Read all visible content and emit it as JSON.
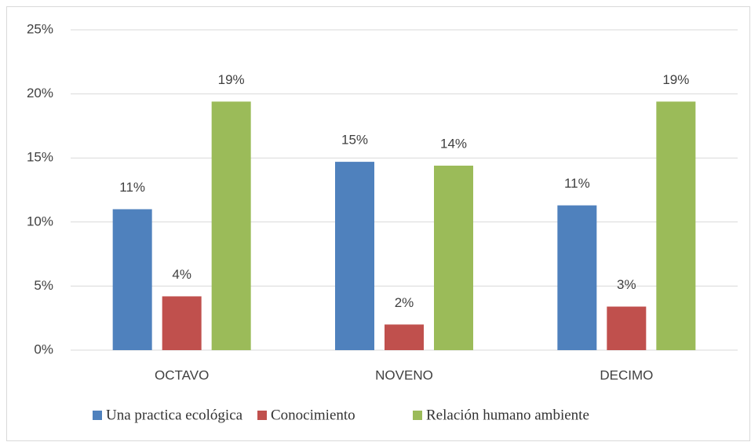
{
  "chart_data": {
    "type": "bar",
    "categories": [
      "OCTAVO",
      "NOVENO",
      "DECIMO"
    ],
    "series": [
      {
        "name": "Una practica ecológica",
        "color": "#4f81bd",
        "values": [
          11.0,
          14.7,
          11.3
        ],
        "value_labels": [
          "11%",
          "15%",
          "11%"
        ]
      },
      {
        "name": "Conocimiento",
        "color": "#c0504d",
        "values": [
          4.2,
          2.0,
          3.4
        ],
        "value_labels": [
          "4%",
          "2%",
          "3%"
        ]
      },
      {
        "name": "Relación humano ambiente",
        "color": "#9bbb59",
        "values": [
          19.4,
          14.4,
          19.4
        ],
        "value_labels": [
          "19%",
          "14%",
          "19%"
        ]
      }
    ],
    "ylim": [
      0,
      25
    ],
    "yticks": [
      {
        "value": 0,
        "label": "0%"
      },
      {
        "value": 5,
        "label": "5%"
      },
      {
        "value": 10,
        "label": "10%"
      },
      {
        "value": 15,
        "label": "15%"
      },
      {
        "value": 20,
        "label": "20%"
      },
      {
        "value": 25,
        "label": "25%"
      }
    ],
    "grid": true,
    "legend": "bottom"
  }
}
